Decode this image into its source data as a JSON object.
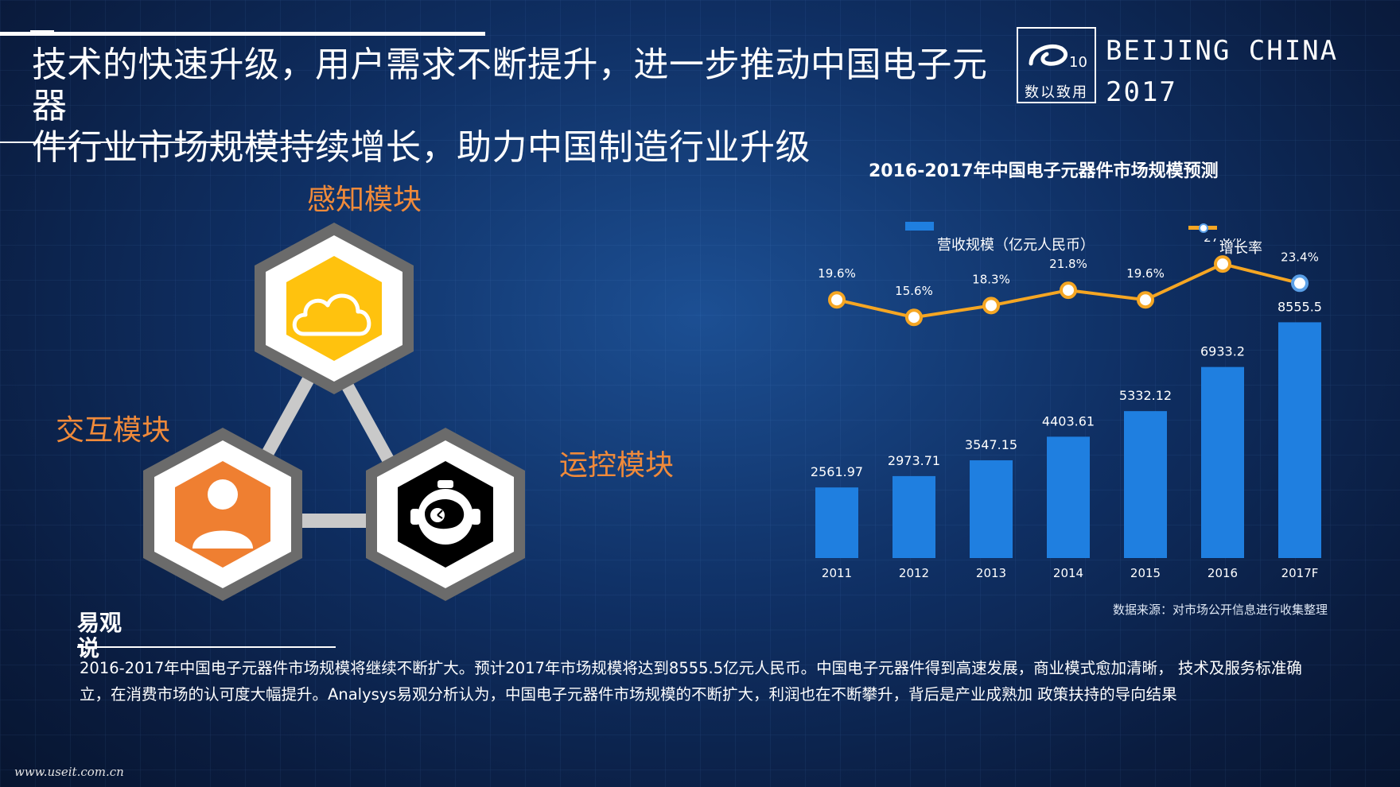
{
  "headline": {
    "line1": "技术的快速升级，用户需求不断提升，进一步推动中国电子元器",
    "line2": "件行业市场规模持续增长，助力中国制造行业升级"
  },
  "brand": {
    "logo_text": "数以致用",
    "right_line1": "BEIJING CHINA",
    "right_line2": "2017"
  },
  "modules": {
    "sense": "感知模块",
    "interact": "交互模块",
    "control": "运控模块"
  },
  "colors": {
    "accent_orange": "#f08a3a",
    "yellow": "#ffc20e",
    "bar_blue": "#1f7fe0",
    "line_orange": "#f5a623",
    "hex_gray": "#6b6b6b"
  },
  "icons": {
    "sense": "cloud-icon",
    "interact": "person-icon",
    "control": "robot-head-icon"
  },
  "chart_data": {
    "type": "bar",
    "title": "2016-2017年中国电子元器件市场规模预测",
    "categories": [
      "2011",
      "2012",
      "2013",
      "2014",
      "2015",
      "2016",
      "2017F"
    ],
    "series": [
      {
        "name": "营收规模（亿元人民币）",
        "type": "bar",
        "values": [
          2561.97,
          2973.71,
          3547.15,
          4403.61,
          5332.12,
          6933.2,
          8555.5
        ],
        "labels": [
          "2561.97",
          "2973.71",
          "3547.15",
          "4403.61",
          "5332.12",
          "6933.2",
          "8555.5"
        ]
      },
      {
        "name": "增长率",
        "type": "line",
        "values": [
          19.6,
          15.6,
          18.3,
          21.8,
          19.6,
          27.8,
          23.4
        ],
        "labels": [
          "19.6%",
          "15.6%",
          "18.3%",
          "21.8%",
          "19.6%",
          "27.8%",
          "23.4%"
        ]
      }
    ],
    "legend": "top",
    "grid": false
  },
  "source": "数据来源：对市场公开信息进行收集整理",
  "insight": {
    "heading": "易观说",
    "paragraph": "2016-2017年中国电子元器件市场规模将继续不断扩大。预计2017年市场规模将达到8555.5亿元人民币。中国电子元器件得到高速发展，商业模式愈加清晰， 技术及服务标准确立，在消费市场的认可度大幅提升。Analysys易观分析认为，中国电子元器件市场规模的不断扩大，利润也在不断攀升，背后是产业成熟加 政策扶持的导向结果"
  },
  "footer": "www.useit.com.cn"
}
